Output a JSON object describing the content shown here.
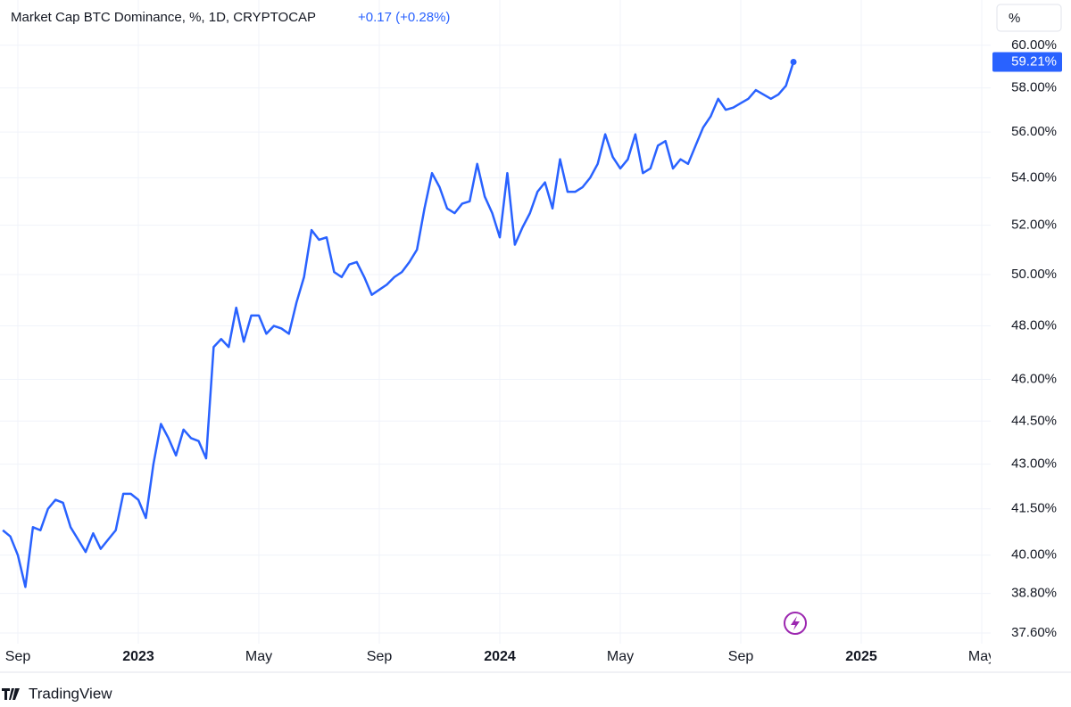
{
  "header": {
    "title": "Market Cap BTC Dominance, %, 1D, CRYPTOCAP",
    "change": "+0.17 (+0.28%)",
    "scale_button": "%"
  },
  "footer": {
    "brand": "TradingView"
  },
  "chart_data": {
    "type": "line",
    "y_scale": "log",
    "grid": true,
    "last_price_label": "59.21%",
    "categories": [
      null,
      null,
      "Sep",
      null,
      null,
      null,
      null,
      null,
      null,
      null,
      null,
      null,
      null,
      null,
      null,
      null,
      null,
      null,
      "2023",
      null,
      null,
      null,
      null,
      null,
      null,
      null,
      null,
      null,
      null,
      null,
      null,
      null,
      null,
      null,
      "May",
      null,
      null,
      null,
      null,
      null,
      null,
      null,
      null,
      null,
      null,
      null,
      null,
      null,
      null,
      null,
      "Sep",
      null,
      null,
      null,
      null,
      null,
      null,
      null,
      null,
      null,
      null,
      null,
      null,
      null,
      null,
      null,
      "2024",
      null,
      null,
      null,
      null,
      null,
      null,
      null,
      null,
      null,
      null,
      null,
      null,
      null,
      null,
      null,
      "May",
      null,
      null,
      null,
      null,
      null,
      null,
      null,
      null,
      null,
      null,
      null,
      null,
      null,
      null,
      null,
      "Sep",
      null,
      null,
      null,
      null,
      null,
      null,
      null,
      null,
      null,
      null,
      null,
      null,
      null,
      null,
      null,
      "2025",
      null,
      null,
      null,
      null,
      null,
      null,
      null,
      null,
      null,
      null,
      null,
      null,
      null,
      null,
      null,
      "May",
      null
    ],
    "series": [
      {
        "name": "BTC Dominance",
        "color": "#2962ff",
        "values": [
          40.8,
          40.6,
          40.0,
          39.0,
          40.9,
          40.8,
          41.5,
          41.8,
          41.7,
          40.9,
          40.5,
          40.1,
          40.7,
          40.2,
          40.5,
          40.8,
          42.0,
          42.0,
          41.8,
          41.2,
          43.0,
          44.4,
          43.9,
          43.3,
          44.2,
          43.9,
          43.8,
          43.2,
          47.2,
          47.5,
          47.2,
          48.7,
          47.4,
          48.4,
          48.4,
          47.7,
          48.0,
          47.9,
          47.7,
          48.9,
          49.9,
          51.8,
          51.4,
          51.5,
          50.1,
          49.9,
          50.4,
          50.5,
          49.9,
          49.2,
          49.4,
          49.6,
          49.9,
          50.1,
          50.5,
          51.0,
          52.7,
          54.2,
          53.6,
          52.7,
          52.5,
          52.9,
          53.0,
          54.6,
          53.2,
          52.5,
          51.5,
          54.2,
          51.2,
          51.9,
          52.5,
          53.4,
          53.8,
          52.7,
          54.8,
          53.4,
          53.4,
          53.6,
          54.0,
          54.6,
          55.9,
          54.9,
          54.4,
          54.8,
          55.9,
          54.2,
          54.4,
          55.4,
          55.6,
          54.4,
          54.8,
          54.6,
          55.4,
          56.2,
          56.7,
          57.5,
          57.0,
          57.1,
          57.3,
          57.5,
          57.9,
          57.7,
          57.5,
          57.7,
          58.1,
          59.21,
          null,
          null,
          null,
          null,
          null,
          null,
          null,
          null,
          null,
          null,
          null,
          null,
          null,
          null,
          null,
          null,
          null,
          null,
          null,
          null,
          null,
          null,
          null,
          null,
          null,
          null
        ]
      }
    ],
    "ylim": [
      37.28,
      62.2
    ],
    "yticks": [
      {
        "value": 37.6,
        "label": "37.60%"
      },
      {
        "value": 38.8,
        "label": "38.80%"
      },
      {
        "value": 40,
        "label": "40.00%"
      },
      {
        "value": 41.5,
        "label": "41.50%"
      },
      {
        "value": 43,
        "label": "43.00%"
      },
      {
        "value": 44.5,
        "label": "44.50%"
      },
      {
        "value": 46,
        "label": "46.00%"
      },
      {
        "value": 48,
        "label": "48.00%"
      },
      {
        "value": 50,
        "label": "50.00%"
      },
      {
        "value": 52,
        "label": "52.00%"
      },
      {
        "value": 54,
        "label": "54.00%"
      },
      {
        "value": 56,
        "label": "56.00%"
      },
      {
        "value": 58,
        "label": "58.00%"
      },
      {
        "value": 60,
        "label": "60.00%"
      }
    ]
  }
}
